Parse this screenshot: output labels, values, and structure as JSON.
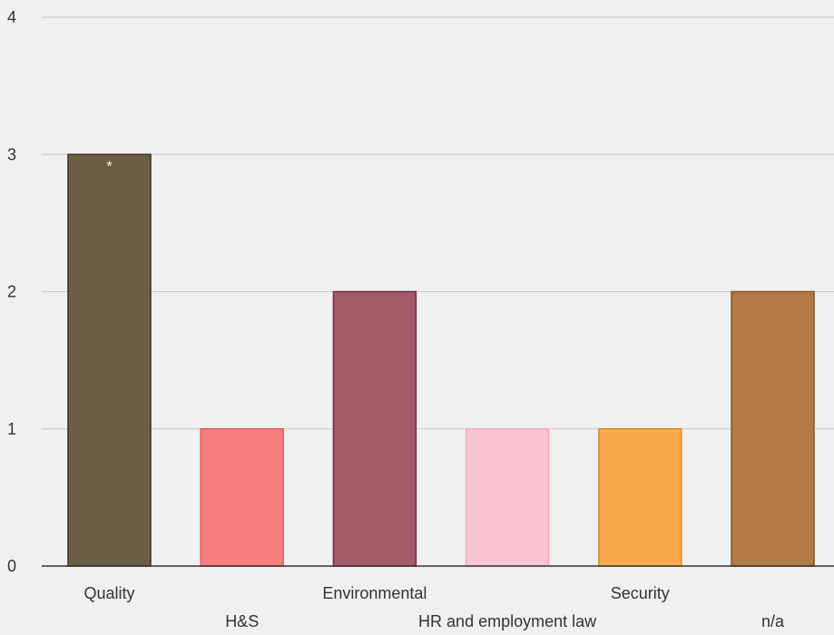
{
  "chart_data": {
    "type": "bar",
    "categories": [
      "Quality",
      "H&S",
      "Environmental",
      "HR and employment law",
      "Security",
      "n/a"
    ],
    "values": [
      3,
      1,
      2,
      1,
      1,
      2
    ],
    "ylim": [
      0,
      4
    ],
    "yticks": [
      0,
      1,
      2,
      3,
      4
    ],
    "grid": true,
    "legend": "none",
    "annotations": [
      {
        "category": "Quality",
        "text": "*"
      }
    ],
    "colors": {
      "fills": [
        "#6b5e44",
        "#f87d7e",
        "#a2596a",
        "#f8c5d0",
        "#f9aa4c",
        "#b07946"
      ],
      "strokes": [
        "#3a3020",
        "#e35f62",
        "#7a2c45",
        "#f0a8b6",
        "#e08a22",
        "#8b561e"
      ],
      "grid": "#c8c8c8",
      "axis": "#333333",
      "background": "#f0f0f0"
    }
  }
}
